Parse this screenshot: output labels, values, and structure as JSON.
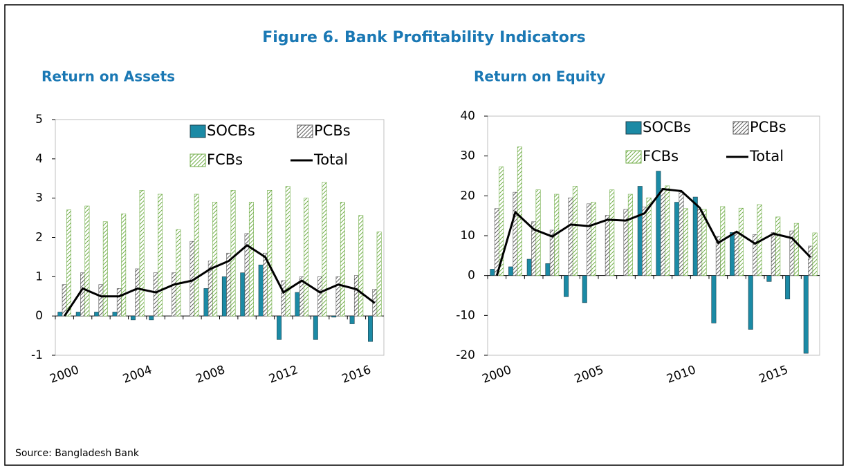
{
  "title": "Figure 6. Bank Profitability Indicators",
  "source": "Source: Bangladesh Bank",
  "chart_data": [
    {
      "type": "bar",
      "title": "Return on Assets",
      "categories": [
        "2000",
        null,
        null,
        null,
        "2004",
        null,
        null,
        null,
        "2008",
        null,
        null,
        null,
        "2012",
        null,
        null,
        null,
        "2016",
        null
      ],
      "series": [
        {
          "name": "SOCBs",
          "color": "#1b8aa5",
          "values": [
            0.1,
            0.1,
            0.1,
            0.1,
            -0.1,
            -0.1,
            0,
            0,
            0.7,
            1.0,
            1.1,
            1.3,
            -0.6,
            0.6,
            -0.6,
            -0.03,
            -0.2,
            -0.65
          ]
        },
        {
          "name": "PCBs",
          "color": "#595959",
          "hatch": true,
          "values": [
            0.8,
            1.1,
            0.8,
            0.7,
            1.2,
            1.1,
            1.1,
            1.9,
            1.4,
            1.6,
            2.1,
            1.6,
            0.9,
            1.0,
            1.0,
            1.0,
            1.03,
            0.68
          ]
        },
        {
          "name": "FCBs",
          "color": "#70ad47",
          "hatch": true,
          "values": [
            2.7,
            2.8,
            2.4,
            2.6,
            3.2,
            3.1,
            2.2,
            3.1,
            2.9,
            3.2,
            2.9,
            3.2,
            3.3,
            3.0,
            3.4,
            2.9,
            2.56,
            2.14
          ]
        },
        {
          "name": "Total",
          "color": "#000000",
          "type": "line",
          "values": [
            0,
            0.7,
            0.5,
            0.5,
            0.7,
            0.6,
            0.8,
            0.9,
            1.2,
            1.4,
            1.8,
            1.5,
            0.6,
            0.9,
            0.6,
            0.8,
            0.68,
            0.33
          ]
        }
      ],
      "ylim": [
        -1,
        5
      ],
      "yticks": [
        -1,
        0,
        1,
        2,
        3,
        4,
        5
      ],
      "legend": "upper right"
    },
    {
      "type": "bar",
      "title": "Return on Equity",
      "categories": [
        "2000",
        null,
        null,
        null,
        null,
        "2005",
        null,
        null,
        null,
        null,
        "2010",
        null,
        null,
        null,
        null,
        "2015",
        null,
        null
      ],
      "series": [
        {
          "name": "SOCBs",
          "color": "#1b8aa5",
          "values": [
            1.6,
            2.2,
            4.1,
            3.0,
            -5.3,
            -6.8,
            0,
            0,
            22.4,
            26.2,
            18.4,
            19.7,
            -11.9,
            10.8,
            -13.5,
            -1.5,
            -5.9,
            -19.5
          ]
        },
        {
          "name": "PCBs",
          "color": "#595959",
          "hatch": true,
          "values": [
            16.8,
            20.9,
            13.5,
            11.4,
            19.5,
            18.0,
            15.1,
            16.6,
            17.2,
            21.9,
            21.0,
            16.6,
            9.8,
            11.0,
            10.3,
            10.8,
            11.2,
            7.4
          ]
        },
        {
          "name": "FCBs",
          "color": "#70ad47",
          "hatch": true,
          "values": [
            27.3,
            32.3,
            21.5,
            20.4,
            22.4,
            18.4,
            21.5,
            20.4,
            19.5,
            22.5,
            16.8,
            16.6,
            17.3,
            16.9,
            17.8,
            14.7,
            13.1,
            10.7
          ]
        },
        {
          "name": "Total",
          "color": "#000000",
          "type": "line",
          "values": [
            0,
            15.9,
            11.6,
            9.8,
            12.8,
            12.4,
            14.0,
            13.8,
            15.6,
            21.7,
            21.2,
            17.0,
            8.2,
            11.0,
            8.0,
            10.5,
            9.4,
            4.6
          ]
        }
      ],
      "ylim": [
        -20,
        40
      ],
      "yticks": [
        -20,
        -10,
        0,
        10,
        20,
        30,
        40
      ],
      "legend": "upper right"
    }
  ]
}
